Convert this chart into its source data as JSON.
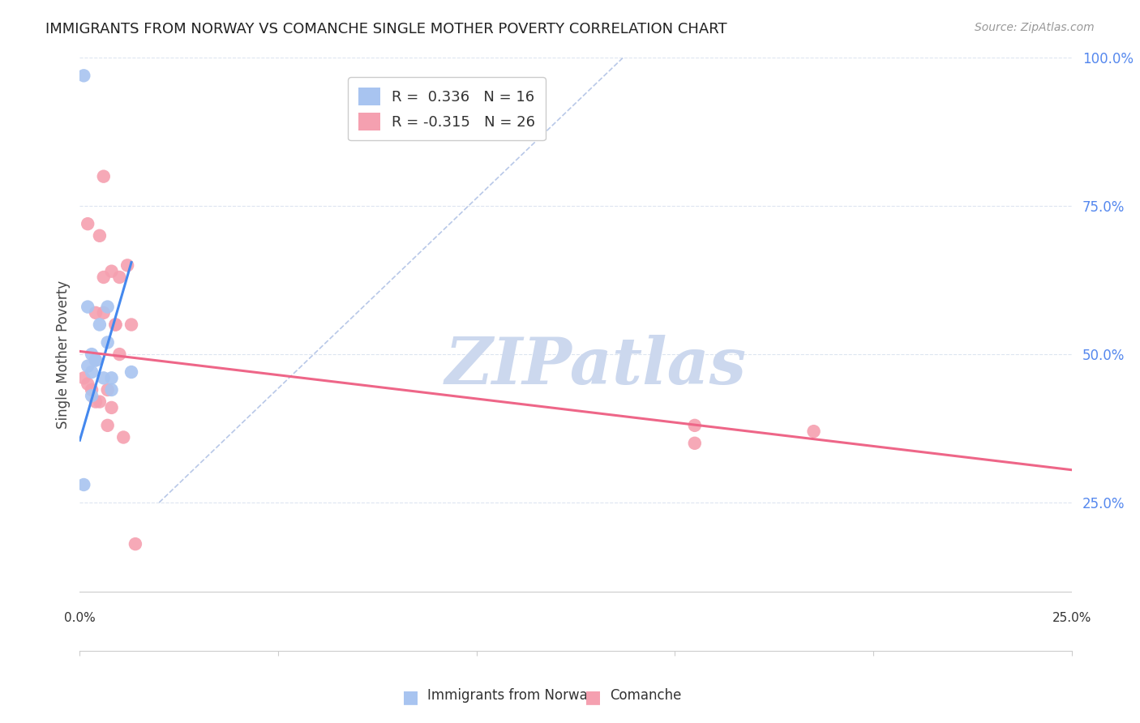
{
  "title": "IMMIGRANTS FROM NORWAY VS COMANCHE SINGLE MOTHER POVERTY CORRELATION CHART",
  "source": "Source: ZipAtlas.com",
  "ylabel": "Single Mother Poverty",
  "yticks": [
    0.25,
    0.5,
    0.75,
    1.0
  ],
  "ytick_labels": [
    "25.0%",
    "50.0%",
    "75.0%",
    "100.0%"
  ],
  "xmin": 0.0,
  "xmax": 0.25,
  "ymin": 0.1,
  "ymax": 1.05,
  "norway_R": 0.336,
  "norway_N": 16,
  "comanche_R": -0.315,
  "comanche_N": 26,
  "norway_color": "#a8c4f0",
  "comanche_color": "#f5a0b0",
  "norway_line_color": "#4488ee",
  "comanche_line_color": "#ee6688",
  "tick_label_color": "#5588ee",
  "diagonal_color": "#b8c8e8",
  "norway_line_x": [
    0.0,
    0.013
  ],
  "norway_line_y": [
    0.355,
    0.655
  ],
  "comanche_line_x": [
    0.0,
    0.25
  ],
  "comanche_line_y": [
    0.505,
    0.305
  ],
  "norway_points_x": [
    0.001,
    0.002,
    0.002,
    0.003,
    0.003,
    0.003,
    0.004,
    0.004,
    0.005,
    0.006,
    0.007,
    0.007,
    0.008,
    0.008,
    0.013,
    0.001
  ],
  "norway_points_y": [
    0.97,
    0.58,
    0.48,
    0.5,
    0.47,
    0.43,
    0.49,
    0.49,
    0.55,
    0.46,
    0.58,
    0.52,
    0.46,
    0.44,
    0.47,
    0.28
  ],
  "comanche_points_x": [
    0.001,
    0.002,
    0.002,
    0.003,
    0.004,
    0.004,
    0.005,
    0.005,
    0.006,
    0.006,
    0.006,
    0.007,
    0.007,
    0.008,
    0.008,
    0.009,
    0.009,
    0.01,
    0.01,
    0.011,
    0.012,
    0.013,
    0.014,
    0.155,
    0.185,
    0.155
  ],
  "comanche_points_y": [
    0.46,
    0.45,
    0.72,
    0.44,
    0.57,
    0.42,
    0.42,
    0.7,
    0.63,
    0.57,
    0.8,
    0.44,
    0.38,
    0.64,
    0.41,
    0.55,
    0.55,
    0.63,
    0.5,
    0.36,
    0.65,
    0.55,
    0.18,
    0.35,
    0.37,
    0.38
  ],
  "watermark": "ZIPatlas",
  "watermark_color": "#ccd8ee",
  "background_color": "#ffffff",
  "grid_color": "#dde5f0",
  "grid_style": "--"
}
